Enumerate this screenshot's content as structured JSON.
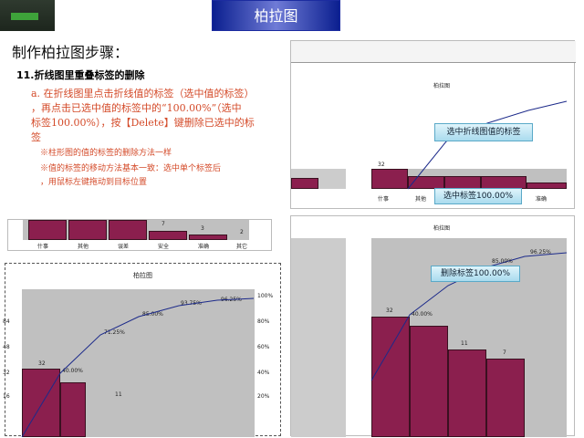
{
  "header": {
    "title": "柏拉图"
  },
  "heading": "制作柏拉图步骤：",
  "step_label": "11.折线图里重叠标签的删除",
  "instructions": {
    "line1": "a. 在折线图里点击折线值的标签（选中值的标签）",
    "line2": "，再点击已选中值的标签中的“100.00%”（选中",
    "line3": "标签100.00%），按【Delete】键删除已选中的标",
    "line4": "签",
    "note1": "※柱形图的值的标签的删除方法一样",
    "note2": "※值的标签的移动方法基本一致：选中单个标签后",
    "note3": "，用鼠标左键拖动到目标位置"
  },
  "callouts": {
    "c1": "选中折线图值的标签",
    "c2": "选中标签100.00%",
    "c3": "删除标签100.00%"
  },
  "chart_small_title": "柏拉图",
  "left_chart": {
    "cats": [
      "什事",
      "其他",
      "误差",
      "安全",
      "准确",
      "其它"
    ],
    "top_values": [
      "7",
      "3",
      "2"
    ],
    "left_ticks": [
      "84",
      "48",
      "32",
      "16"
    ],
    "right_ticks": [
      "100%",
      "80%",
      "60%",
      "40%",
      "20%"
    ],
    "values": [
      "32",
      "11"
    ],
    "pct_labels": [
      "40.00%",
      "71.25%",
      "85.00%",
      "93.75%",
      "96.25%"
    ]
  },
  "chart_data": {
    "type": "bar",
    "title": "柏拉图",
    "categories": [
      "什事",
      "其他",
      "误差",
      "安全",
      "准确",
      "其它"
    ],
    "series": [
      {
        "values": [
          32,
          25,
          11,
          7,
          3,
          2
        ]
      },
      {
        "values": [
          40.0,
          71.25,
          85.0,
          93.75,
          96.25,
          100.0
        ]
      }
    ]
  }
}
